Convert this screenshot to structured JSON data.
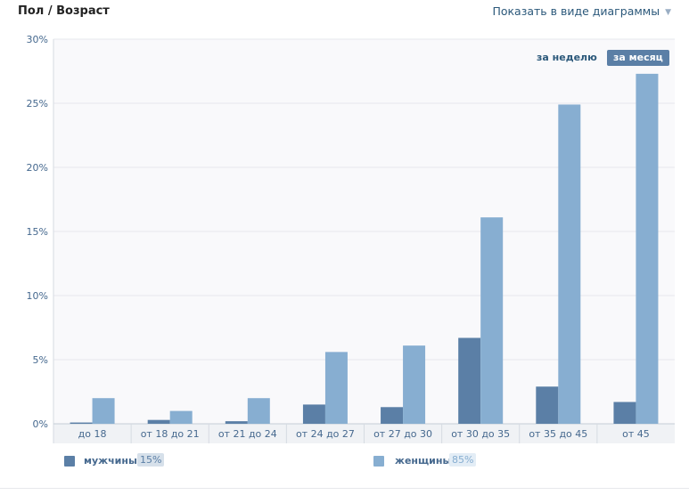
{
  "header": {
    "title": "Пол / Возраст",
    "view_toggle": "Показать в виде диаграммы"
  },
  "period": {
    "week": "за неделю",
    "month": "за месяц",
    "selected": "month"
  },
  "legend": [
    {
      "label": "мужчины",
      "percent": "15%",
      "color": "#5b7fa6"
    },
    {
      "label": "женщины",
      "percent": "85%",
      "color": "#87aed1"
    }
  ],
  "chart_data": {
    "type": "bar",
    "categories": [
      "до 18",
      "от 18 до 21",
      "от 21 до 24",
      "от 24 до 27",
      "от 27 до 30",
      "от 30 до 35",
      "от 35 до 45",
      "от 45"
    ],
    "series": [
      {
        "name": "мужчины",
        "values": [
          0.1,
          0.3,
          0.2,
          1.5,
          1.3,
          6.7,
          2.9,
          1.7
        ],
        "color": "#5b7fa6"
      },
      {
        "name": "женщины",
        "values": [
          2.0,
          1.0,
          2.0,
          5.6,
          6.1,
          16.1,
          24.9,
          27.3
        ],
        "color": "#87aed1"
      }
    ],
    "yticks": [
      "0%",
      "5%",
      "10%",
      "15%",
      "20%",
      "25%",
      "30%"
    ],
    "ylim": [
      0,
      30
    ],
    "grid": true
  }
}
